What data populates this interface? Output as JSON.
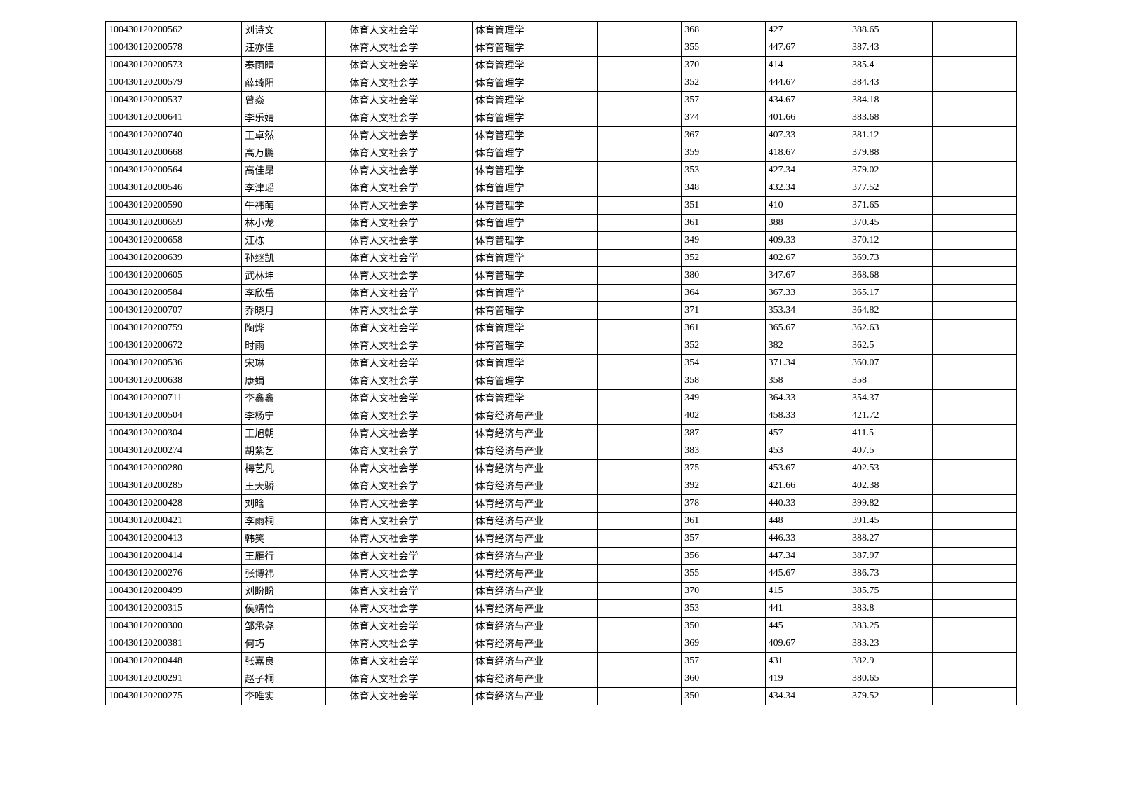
{
  "table": {
    "rows": [
      {
        "id": "100430120200562",
        "name": "刘诗文",
        "dept": "体育人文社会学",
        "major": "体育管理学",
        "s1": "368",
        "s2": "427",
        "s3": "388.65"
      },
      {
        "id": "100430120200578",
        "name": "汪亦佳",
        "dept": "体育人文社会学",
        "major": "体育管理学",
        "s1": "355",
        "s2": "447.67",
        "s3": "387.43"
      },
      {
        "id": "100430120200573",
        "name": "秦雨晴",
        "dept": "体育人文社会学",
        "major": "体育管理学",
        "s1": "370",
        "s2": "414",
        "s3": "385.4"
      },
      {
        "id": "100430120200579",
        "name": "薛琦阳",
        "dept": "体育人文社会学",
        "major": "体育管理学",
        "s1": "352",
        "s2": "444.67",
        "s3": "384.43"
      },
      {
        "id": "100430120200537",
        "name": "曾焱",
        "dept": "体育人文社会学",
        "major": "体育管理学",
        "s1": "357",
        "s2": "434.67",
        "s3": "384.18"
      },
      {
        "id": "100430120200641",
        "name": "李乐婧",
        "dept": "体育人文社会学",
        "major": "体育管理学",
        "s1": "374",
        "s2": "401.66",
        "s3": "383.68"
      },
      {
        "id": "100430120200740",
        "name": "王卓然",
        "dept": "体育人文社会学",
        "major": "体育管理学",
        "s1": "367",
        "s2": "407.33",
        "s3": "381.12"
      },
      {
        "id": "100430120200668",
        "name": "高万鹏",
        "dept": "体育人文社会学",
        "major": "体育管理学",
        "s1": "359",
        "s2": "418.67",
        "s3": "379.88"
      },
      {
        "id": "100430120200564",
        "name": "高佳昂",
        "dept": "体育人文社会学",
        "major": "体育管理学",
        "s1": "353",
        "s2": "427.34",
        "s3": "379.02"
      },
      {
        "id": "100430120200546",
        "name": "李津瑶",
        "dept": "体育人文社会学",
        "major": "体育管理学",
        "s1": "348",
        "s2": "432.34",
        "s3": "377.52"
      },
      {
        "id": "100430120200590",
        "name": "牛祎萌",
        "dept": "体育人文社会学",
        "major": "体育管理学",
        "s1": "351",
        "s2": "410",
        "s3": "371.65"
      },
      {
        "id": "100430120200659",
        "name": "林小龙",
        "dept": "体育人文社会学",
        "major": "体育管理学",
        "s1": "361",
        "s2": "388",
        "s3": "370.45"
      },
      {
        "id": "100430120200658",
        "name": "汪栋",
        "dept": "体育人文社会学",
        "major": "体育管理学",
        "s1": "349",
        "s2": "409.33",
        "s3": "370.12"
      },
      {
        "id": "100430120200639",
        "name": "孙继凯",
        "dept": "体育人文社会学",
        "major": "体育管理学",
        "s1": "352",
        "s2": "402.67",
        "s3": "369.73"
      },
      {
        "id": "100430120200605",
        "name": "武林坤",
        "dept": "体育人文社会学",
        "major": "体育管理学",
        "s1": "380",
        "s2": "347.67",
        "s3": "368.68"
      },
      {
        "id": "100430120200584",
        "name": "李欣岳",
        "dept": "体育人文社会学",
        "major": "体育管理学",
        "s1": "364",
        "s2": "367.33",
        "s3": "365.17"
      },
      {
        "id": "100430120200707",
        "name": "乔晓月",
        "dept": "体育人文社会学",
        "major": "体育管理学",
        "s1": "371",
        "s2": "353.34",
        "s3": "364.82"
      },
      {
        "id": "100430120200759",
        "name": "陶烨",
        "dept": "体育人文社会学",
        "major": "体育管理学",
        "s1": "361",
        "s2": "365.67",
        "s3": "362.63"
      },
      {
        "id": "100430120200672",
        "name": "时雨",
        "dept": "体育人文社会学",
        "major": "体育管理学",
        "s1": "352",
        "s2": "382",
        "s3": "362.5"
      },
      {
        "id": "100430120200536",
        "name": "宋琳",
        "dept": "体育人文社会学",
        "major": "体育管理学",
        "s1": "354",
        "s2": "371.34",
        "s3": "360.07"
      },
      {
        "id": "100430120200638",
        "name": "康娟",
        "dept": "体育人文社会学",
        "major": "体育管理学",
        "s1": "358",
        "s2": "358",
        "s3": "358"
      },
      {
        "id": "100430120200711",
        "name": "李鑫鑫",
        "dept": "体育人文社会学",
        "major": "体育管理学",
        "s1": "349",
        "s2": "364.33",
        "s3": "354.37"
      },
      {
        "id": "100430120200504",
        "name": "李杨宁",
        "dept": "体育人文社会学",
        "major": "体育经济与产业",
        "s1": "402",
        "s2": "458.33",
        "s3": "421.72"
      },
      {
        "id": "100430120200304",
        "name": "王旭朝",
        "dept": "体育人文社会学",
        "major": "体育经济与产业",
        "s1": "387",
        "s2": "457",
        "s3": "411.5"
      },
      {
        "id": "100430120200274",
        "name": "胡紫艺",
        "dept": "体育人文社会学",
        "major": "体育经济与产业",
        "s1": "383",
        "s2": "453",
        "s3": "407.5"
      },
      {
        "id": "100430120200280",
        "name": "梅艺凡",
        "dept": "体育人文社会学",
        "major": "体育经济与产业",
        "s1": "375",
        "s2": "453.67",
        "s3": "402.53"
      },
      {
        "id": "100430120200285",
        "name": "王天骄",
        "dept": "体育人文社会学",
        "major": "体育经济与产业",
        "s1": "392",
        "s2": "421.66",
        "s3": "402.38"
      },
      {
        "id": "100430120200428",
        "name": "刘晗",
        "dept": "体育人文社会学",
        "major": "体育经济与产业",
        "s1": "378",
        "s2": "440.33",
        "s3": "399.82"
      },
      {
        "id": "100430120200421",
        "name": "李雨桐",
        "dept": "体育人文社会学",
        "major": "体育经济与产业",
        "s1": "361",
        "s2": "448",
        "s3": "391.45"
      },
      {
        "id": "100430120200413",
        "name": "韩笑",
        "dept": "体育人文社会学",
        "major": "体育经济与产业",
        "s1": "357",
        "s2": "446.33",
        "s3": "388.27"
      },
      {
        "id": "100430120200414",
        "name": "王雁行",
        "dept": "体育人文社会学",
        "major": "体育经济与产业",
        "s1": "356",
        "s2": "447.34",
        "s3": "387.97"
      },
      {
        "id": "100430120200276",
        "name": "张博祎",
        "dept": "体育人文社会学",
        "major": "体育经济与产业",
        "s1": "355",
        "s2": "445.67",
        "s3": "386.73"
      },
      {
        "id": "100430120200499",
        "name": "刘盼盼",
        "dept": "体育人文社会学",
        "major": "体育经济与产业",
        "s1": "370",
        "s2": "415",
        "s3": "385.75"
      },
      {
        "id": "100430120200315",
        "name": "侯靖怡",
        "dept": "体育人文社会学",
        "major": "体育经济与产业",
        "s1": "353",
        "s2": "441",
        "s3": "383.8"
      },
      {
        "id": "100430120200300",
        "name": "邹承尧",
        "dept": "体育人文社会学",
        "major": "体育经济与产业",
        "s1": "350",
        "s2": "445",
        "s3": "383.25"
      },
      {
        "id": "100430120200381",
        "name": "何巧",
        "dept": "体育人文社会学",
        "major": "体育经济与产业",
        "s1": "369",
        "s2": "409.67",
        "s3": "383.23"
      },
      {
        "id": "100430120200448",
        "name": "张嘉良",
        "dept": "体育人文社会学",
        "major": "体育经济与产业",
        "s1": "357",
        "s2": "431",
        "s3": "382.9"
      },
      {
        "id": "100430120200291",
        "name": "赵子桐",
        "dept": "体育人文社会学",
        "major": "体育经济与产业",
        "s1": "360",
        "s2": "419",
        "s3": "380.65"
      },
      {
        "id": "100430120200275",
        "name": "李唯实",
        "dept": "体育人文社会学",
        "major": "体育经济与产业",
        "s1": "350",
        "s2": "434.34",
        "s3": "379.52"
      }
    ]
  }
}
